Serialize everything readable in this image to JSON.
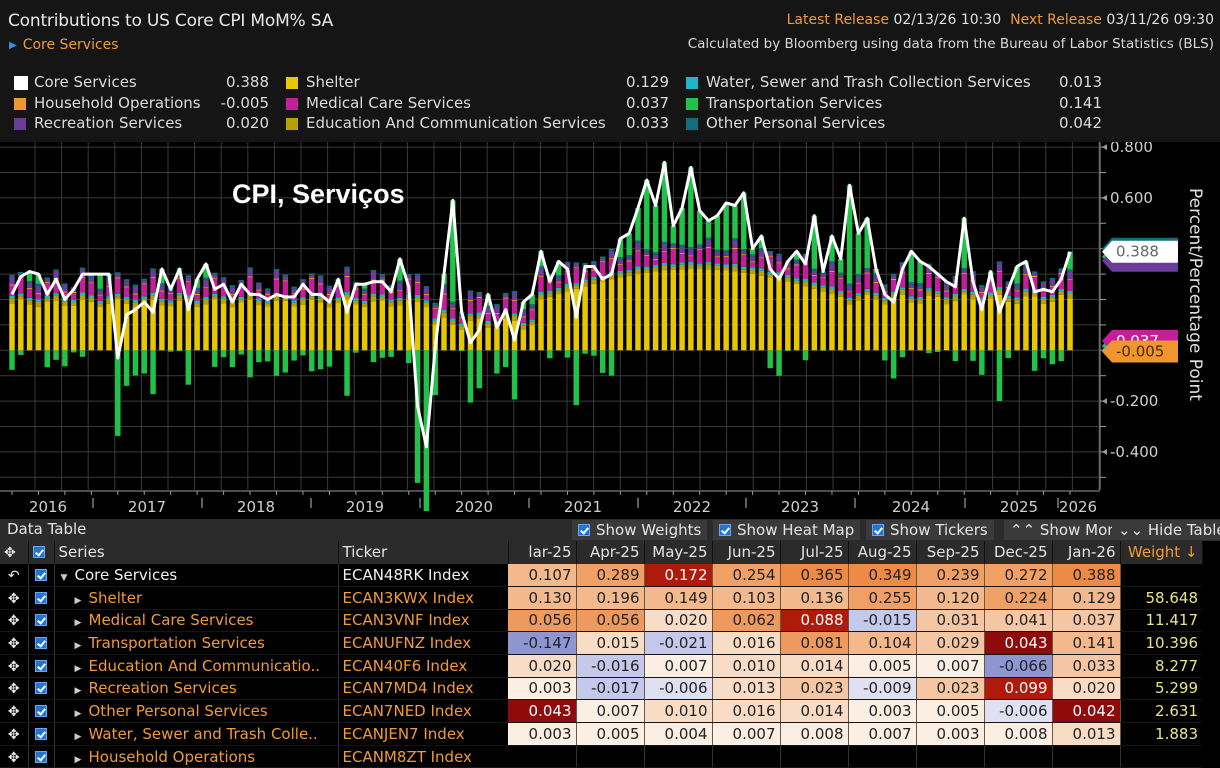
{
  "header": {
    "title": "Contributions to US Core CPI MoM% SA",
    "subtitle": "Core Services",
    "latest_release_label": "Latest Release",
    "latest_release_value": "02/13/26 10:30",
    "next_release_label": "Next Release",
    "next_release_value": "03/11/26 09:30",
    "source": "Calculated by Bloomberg using data from the Bureau of Labor Statistics (BLS)"
  },
  "legend": [
    {
      "label": "Core Services",
      "value": "0.388",
      "color": "#ffffff"
    },
    {
      "label": "Household Operations",
      "value": "-0.005",
      "color": "#ef962e"
    },
    {
      "label": "Recreation Services",
      "value": "0.020",
      "color": "#6a3d9a"
    },
    {
      "label": "Shelter",
      "value": "0.129",
      "color": "#e6c700"
    },
    {
      "label": "Medical Care Services",
      "value": "0.037",
      "color": "#c41f9a"
    },
    {
      "label": "Education And Communication Services",
      "value": "0.033",
      "color": "#b8a000"
    },
    {
      "label": "Water, Sewer and Trash Collection Services",
      "value": "0.013",
      "color": "#1fb6c8"
    },
    {
      "label": "Transportation Services",
      "value": "0.141",
      "color": "#22c24a"
    },
    {
      "label": "Other Personal Services",
      "value": "0.042",
      "color": "#0f6f7a"
    }
  ],
  "overlay_title": "CPI, Serviços",
  "chart_data": {
    "type": "bar",
    "stacked": true,
    "title": "Contributions to US Core CPI MoM% SA",
    "xlabel": "",
    "ylabel": "Percent/Percentage Point",
    "ylim": [
      -0.55,
      0.82
    ],
    "yticks": [
      0.8,
      0.6,
      0.4,
      0.2,
      0.0,
      -0.2,
      -0.4
    ],
    "ytick_labels": [
      "0.800",
      "0.600",
      "",
      "",
      "",
      "-0.200",
      "-0.400"
    ],
    "xticks": [
      "2016",
      "2017",
      "2018",
      "2019",
      "2020",
      "2021",
      "2022",
      "2023",
      "2024",
      "2025",
      "2026"
    ],
    "grid": true,
    "legend_position": "top",
    "line_series": {
      "name": "Core Services",
      "color": "#ffffff",
      "start": "2016-01",
      "values": [
        0.22,
        0.29,
        0.31,
        0.3,
        0.22,
        0.28,
        0.2,
        0.24,
        0.3,
        0.3,
        0.3,
        0.3,
        -0.03,
        0.14,
        0.16,
        0.19,
        0.15,
        0.32,
        0.24,
        0.32,
        0.16,
        0.28,
        0.34,
        0.24,
        0.26,
        0.19,
        0.26,
        0.22,
        0.22,
        0.2,
        0.22,
        0.21,
        0.21,
        0.26,
        0.22,
        0.22,
        0.19,
        0.28,
        0.15,
        0.26,
        0.26,
        0.27,
        0.27,
        0.23,
        0.36,
        0.25,
        -0.22,
        -0.38,
        0.01,
        0.3,
        0.59,
        0.15,
        0.03,
        0.08,
        0.22,
        0.09,
        0.16,
        0.04,
        0.19,
        0.22,
        0.39,
        0.27,
        0.35,
        0.32,
        0.13,
        0.33,
        0.33,
        0.28,
        0.3,
        0.44,
        0.46,
        0.56,
        0.67,
        0.57,
        0.74,
        0.49,
        0.56,
        0.72,
        0.55,
        0.51,
        0.53,
        0.58,
        0.57,
        0.62,
        0.4,
        0.45,
        0.32,
        0.28,
        0.35,
        0.39,
        0.34,
        0.53,
        0.31,
        0.45,
        0.36,
        0.65,
        0.46,
        0.52,
        0.32,
        0.22,
        0.19,
        0.32,
        0.39,
        0.35,
        0.33,
        0.3,
        0.27,
        0.25,
        0.52,
        0.27,
        0.16,
        0.31,
        0.15,
        0.24,
        0.33,
        0.35,
        0.23,
        0.24,
        0.23,
        0.28,
        0.388
      ]
    },
    "series_order": [
      "Shelter",
      "Education And Communication Services",
      "Water, Sewer and Trash Collection Services",
      "Medical Care Services",
      "Household Operations",
      "Recreation Services",
      "Other Personal Services",
      "Transportation Services"
    ],
    "latest_labels": [
      {
        "value": "0.388",
        "color": "#ffffff",
        "text_color": "#666666"
      },
      {
        "value": "0.037",
        "color": "#c41f9a",
        "text_color": "#ffffff"
      },
      {
        "value": "-0.005",
        "color": "#ef962e",
        "text_color": "#4a2a00"
      }
    ]
  },
  "table": {
    "title": "Data Table",
    "buttons": {
      "show_weights": "Show Weights",
      "show_heat_map": "Show Heat Map",
      "show_tickers": "Show Tickers",
      "show_more": "Show More",
      "hide_table": "Hide Table"
    },
    "headers": {
      "series": "Series",
      "ticker": "Ticker",
      "months": [
        "lar-25",
        "Apr-25",
        "May-25",
        "Jun-25",
        "Jul-25",
        "Aug-25",
        "Sep-25",
        "Dec-25",
        "Jan-26"
      ],
      "weight": "Weight"
    },
    "rows": [
      {
        "series": "Core Services",
        "ticker": "ECAN48RK Index",
        "values": [
          "0.107",
          "0.289",
          "0.172",
          "0.254",
          "0.365",
          "0.349",
          "0.239",
          "0.272",
          "0.388"
        ],
        "weight": ""
      },
      {
        "series": "Shelter",
        "ticker": "ECAN3KWX Index",
        "values": [
          "0.130",
          "0.196",
          "0.149",
          "0.103",
          "0.136",
          "0.255",
          "0.120",
          "0.224",
          "0.129"
        ],
        "weight": "58.648"
      },
      {
        "series": "Medical Care Services",
        "ticker": "ECAN3VNF Index",
        "values": [
          "0.056",
          "0.056",
          "0.020",
          "0.062",
          "0.088",
          "-0.015",
          "0.031",
          "0.041",
          "0.037"
        ],
        "weight": "11.417"
      },
      {
        "series": "Transportation Services",
        "ticker": "ECANUFNZ Index",
        "values": [
          "-0.147",
          "0.015",
          "-0.021",
          "0.016",
          "0.081",
          "0.104",
          "0.029",
          "0.043",
          "0.141"
        ],
        "weight": "10.396"
      },
      {
        "series": "Education And Communicatio..",
        "ticker": "ECAN40F6 Index",
        "values": [
          "0.020",
          "-0.016",
          "0.007",
          "0.010",
          "0.014",
          "0.005",
          "0.007",
          "-0.066",
          "0.033"
        ],
        "weight": "8.277"
      },
      {
        "series": "Recreation Services",
        "ticker": "ECAN7MD4 Index",
        "values": [
          "0.003",
          "-0.017",
          "-0.006",
          "0.013",
          "0.023",
          "-0.009",
          "0.023",
          "0.099",
          "0.020"
        ],
        "weight": "5.299"
      },
      {
        "series": "Other Personal Services",
        "ticker": "ECAN7NED Index",
        "values": [
          "0.043",
          "0.007",
          "0.010",
          "0.016",
          "0.014",
          "0.003",
          "0.005",
          "-0.006",
          "0.042"
        ],
        "weight": "2.631"
      },
      {
        "series": "Water, Sewer and Trash Colle..",
        "ticker": "ECANJEN7 Index",
        "values": [
          "0.003",
          "0.005",
          "0.004",
          "0.007",
          "0.008",
          "0.007",
          "0.003",
          "0.008",
          "0.013"
        ],
        "weight": "1.883"
      },
      {
        "series": "Household Operations",
        "ticker": "ECANM8ZT Index",
        "values": [
          "",
          "",
          "",
          "",
          "",
          "",
          "",
          "",
          ""
        ],
        "weight": ""
      }
    ]
  }
}
